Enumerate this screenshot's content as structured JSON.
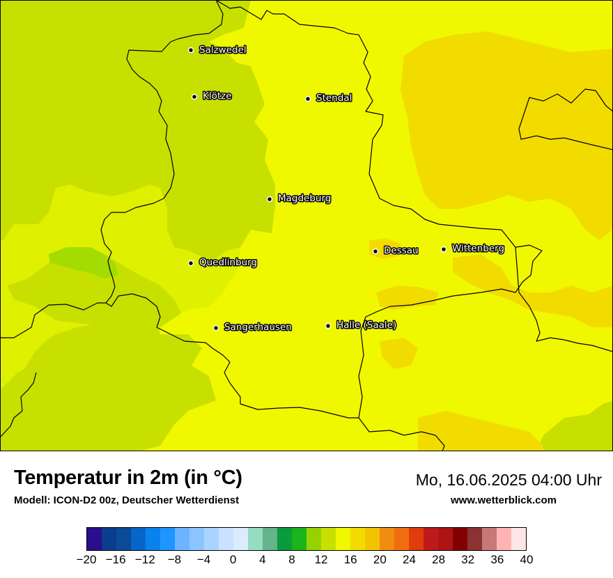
{
  "map": {
    "cities": [
      {
        "name": "Salzwedel"
      },
      {
        "name": "Klötze"
      },
      {
        "name": "Stendal"
      },
      {
        "name": "Magdeburg"
      },
      {
        "name": "Quedlinburg"
      },
      {
        "name": "Dessau"
      },
      {
        "name": "Wittenberg"
      },
      {
        "name": "Sangerhausen"
      },
      {
        "name": "Halle (Saale)"
      }
    ],
    "colors": {
      "t12": "#c8e000",
      "t14": "#dff000",
      "t16": "#f0f800",
      "t18": "#f2dc00",
      "t10": "#a2dc00"
    }
  },
  "footer": {
    "title": "Temperatur in 2m (in °C)",
    "model": "Modell: ICON-D2 00z, Deutscher Wetterdienst",
    "datetime": "Mo, 16.06.2025 04:00 Uhr",
    "website": "www.wetterblick.com"
  },
  "legend": {
    "min": -20,
    "max": 40,
    "ticks": [
      "−20",
      "−16",
      "−12",
      "−8",
      "−4",
      "0",
      "4",
      "8",
      "12",
      "16",
      "20",
      "24",
      "28",
      "32",
      "36",
      "40"
    ],
    "colors": [
      "#2a0e8c",
      "#0c3c8c",
      "#0a4a96",
      "#0865c8",
      "#0a82ee",
      "#1e96ff",
      "#6cb4ff",
      "#8cc4ff",
      "#aad4ff",
      "#c8e2ff",
      "#dcecff",
      "#96dcc0",
      "#64b48c",
      "#0a9c3c",
      "#1cb41c",
      "#96d200",
      "#c8e000",
      "#f0f800",
      "#f2dc00",
      "#f2c400",
      "#f28c10",
      "#f06e10",
      "#e23c0c",
      "#be1a1a",
      "#ae1414",
      "#820000",
      "#8c3232",
      "#c87878",
      "#ffb4b4",
      "#ffe6e6"
    ]
  }
}
